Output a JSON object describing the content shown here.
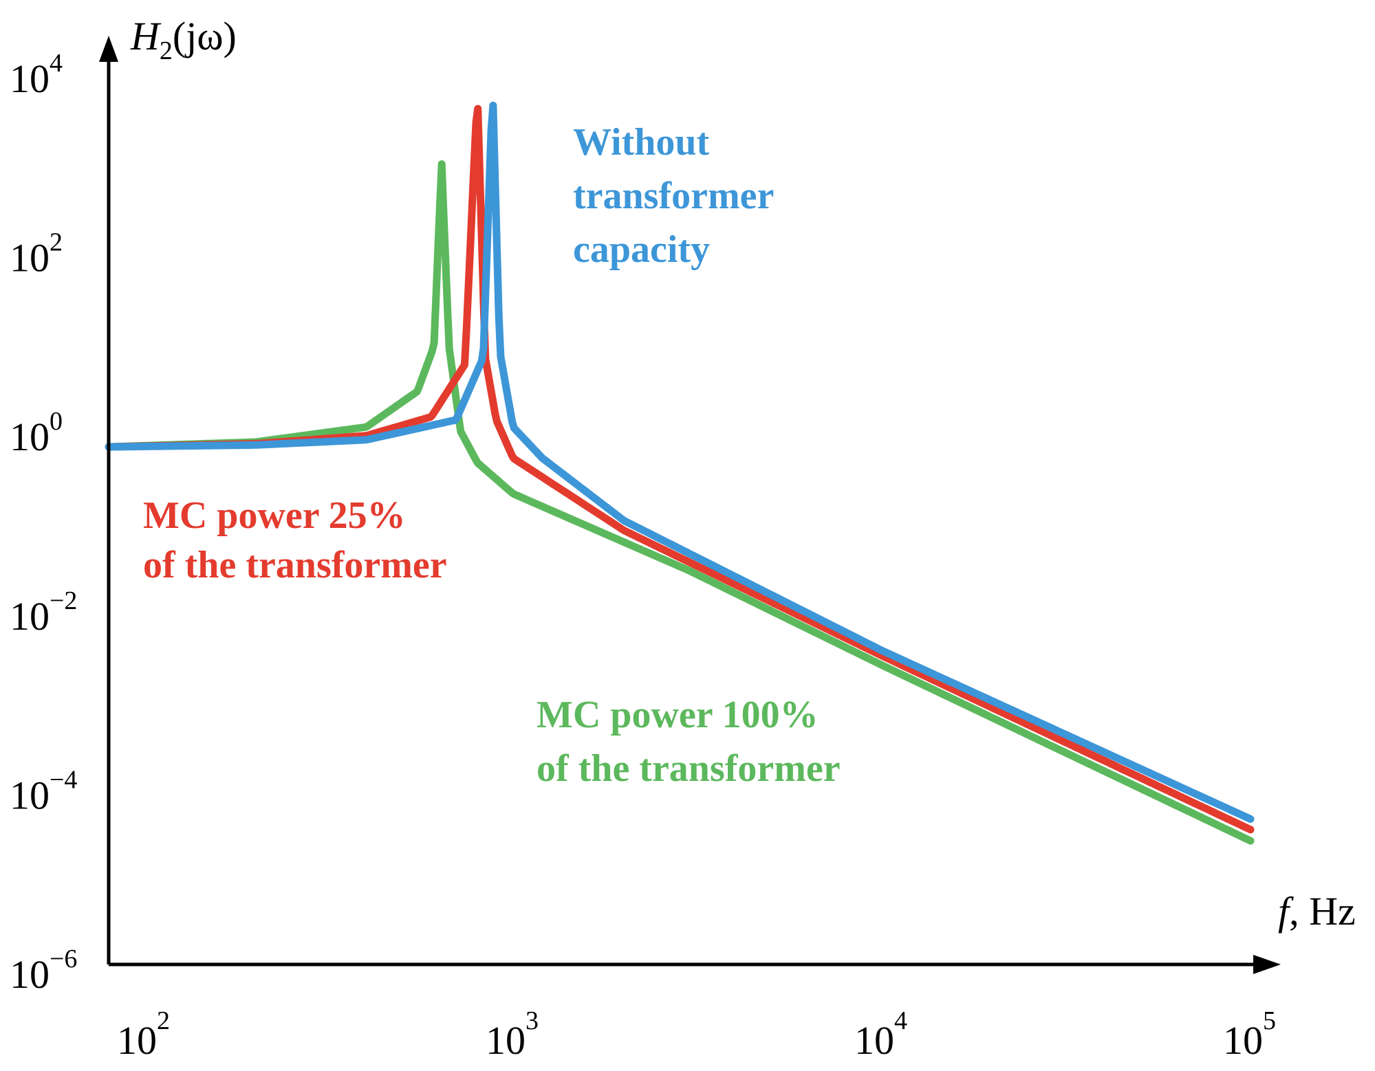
{
  "chart_data": {
    "type": "line",
    "title": "",
    "xlabel": {
      "variable": "f",
      "unit": ", Hz"
    },
    "ylabel": {
      "main": "H",
      "sub": "2",
      "arg": "(jω)"
    },
    "x_scale": "log",
    "y_scale": "log",
    "xlim": [
      80,
      100000
    ],
    "ylim": [
      1e-06,
      10000
    ],
    "x_ticks": [
      {
        "base": "10",
        "exp": "2",
        "value": 100
      },
      {
        "base": "10",
        "exp": "3",
        "value": 1000
      },
      {
        "base": "10",
        "exp": "4",
        "value": 10000
      },
      {
        "base": "10",
        "exp": "5",
        "value": 100000
      }
    ],
    "y_ticks": [
      {
        "base": "10",
        "exp": "4",
        "value": 10000
      },
      {
        "base": "10",
        "exp": "2",
        "value": 100
      },
      {
        "base": "10",
        "exp": "0",
        "value": 1
      },
      {
        "base": "10",
        "exp": "−2",
        "value": 0.01
      },
      {
        "base": "10",
        "exp": "−4",
        "value": 0.0001
      },
      {
        "base": "10",
        "exp": "−6",
        "value": 1e-06
      }
    ],
    "series": [
      {
        "name": "MC power 100% of the transformer",
        "color": "#5cb85c",
        "resonance_hz": 640,
        "peak": 900,
        "points": [
          [
            80,
            0.6
          ],
          [
            200,
            0.68
          ],
          [
            400,
            1.0
          ],
          [
            550,
            2.5
          ],
          [
            610,
            8
          ],
          [
            640,
            900
          ],
          [
            670,
            8
          ],
          [
            720,
            0.9
          ],
          [
            800,
            0.4
          ],
          [
            1000,
            0.18
          ],
          [
            3000,
            0.025
          ],
          [
            10000,
            0.0022
          ],
          [
            100000,
            2.4e-05
          ]
        ]
      },
      {
        "name": "MC power 25% of the transformer",
        "color": "#e33b2e",
        "resonance_hz": 800,
        "peak": 5500,
        "points": [
          [
            80,
            0.6
          ],
          [
            200,
            0.65
          ],
          [
            400,
            0.8
          ],
          [
            600,
            1.3
          ],
          [
            740,
            5
          ],
          [
            800,
            5500
          ],
          [
            840,
            6
          ],
          [
            900,
            1.2
          ],
          [
            1000,
            0.45
          ],
          [
            2000,
            0.07
          ],
          [
            10000,
            0.0028
          ],
          [
            100000,
            3.2e-05
          ]
        ]
      },
      {
        "name": "Without transformer capacity",
        "color": "#3d96d8",
        "resonance_hz": 880,
        "peak": 6000,
        "points": [
          [
            80,
            0.6
          ],
          [
            200,
            0.63
          ],
          [
            400,
            0.72
          ],
          [
            700,
            1.2
          ],
          [
            830,
            6
          ],
          [
            880,
            6000
          ],
          [
            920,
            7
          ],
          [
            1000,
            1.0
          ],
          [
            1200,
            0.45
          ],
          [
            2000,
            0.09
          ],
          [
            10000,
            0.0032
          ],
          [
            100000,
            4.2e-05
          ]
        ]
      }
    ],
    "annotations": [
      {
        "series": 2,
        "lines": [
          "Without",
          "transformer",
          "capacity"
        ]
      },
      {
        "series": 1,
        "lines": [
          "MC power 25%",
          "of the transformer"
        ]
      },
      {
        "series": 0,
        "lines": [
          "MC power 100%",
          "of the transformer"
        ]
      }
    ]
  }
}
